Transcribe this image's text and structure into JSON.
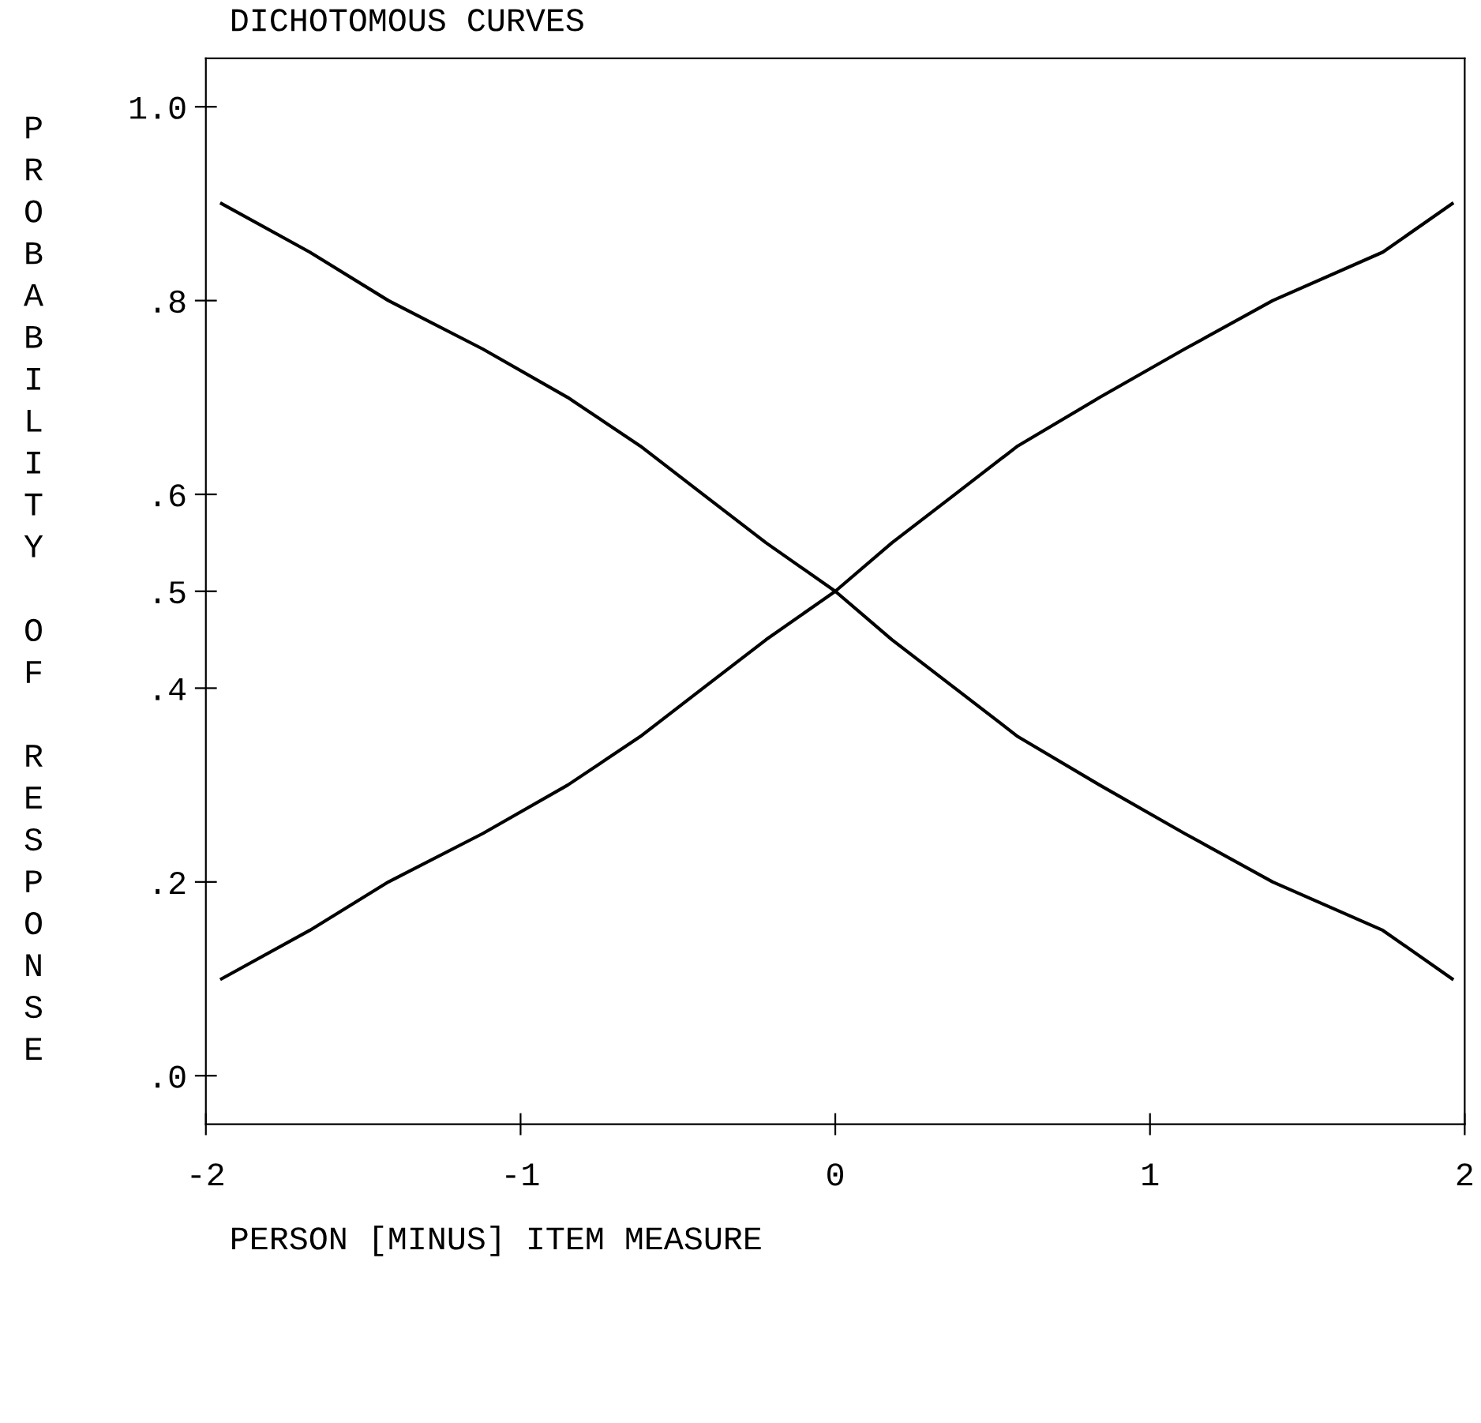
{
  "chart_data": {
    "type": "line",
    "title": "DICHOTOMOUS CURVES",
    "xlabel": "PERSON [MINUS] ITEM MEASURE",
    "ylabel": "PROBABILITY OF RESPONSE",
    "series": [
      {
        "color": "#000000",
        "x": [
          -1.95,
          -1.67,
          -1.42,
          -1.12,
          -0.85,
          -0.62,
          -0.42,
          -0.22,
          0,
          0.18,
          0.38,
          0.58,
          0.84,
          1.11,
          1.39,
          1.74,
          1.96
        ],
        "values": [
          0.9,
          0.85,
          0.8,
          0.75,
          0.7,
          0.65,
          0.6,
          0.55,
          0.5,
          0.45,
          0.4,
          0.35,
          0.3,
          0.25,
          0.2,
          0.15,
          0.1
        ]
      },
      {
        "color": "#000000",
        "x": [
          -1.95,
          -1.67,
          -1.42,
          -1.12,
          -0.85,
          -0.62,
          -0.42,
          -0.22,
          0,
          0.18,
          0.38,
          0.58,
          0.84,
          1.11,
          1.39,
          1.74,
          1.96
        ],
        "values": [
          0.1,
          0.15,
          0.2,
          0.25,
          0.3,
          0.35,
          0.4,
          0.45,
          0.5,
          0.55,
          0.6,
          0.65,
          0.7,
          0.75,
          0.8,
          0.85,
          0.9
        ]
      }
    ],
    "xlim": [
      -2,
      2
    ],
    "xticks": [
      -2,
      -1,
      0,
      1,
      2
    ],
    "ylim": [
      -0.05,
      1.05
    ],
    "yticks": [
      {
        "value": 0,
        "label": ".0"
      },
      {
        "value": 0.2,
        "label": ".2"
      },
      {
        "value": 0.4,
        "label": ".4"
      },
      {
        "value": 0.5,
        "label": ".5"
      },
      {
        "value": 0.6,
        "label": ".6"
      },
      {
        "value": 0.8,
        "label": ".8"
      },
      {
        "value": 1.0,
        "label": "1.0"
      }
    ],
    "grid": false,
    "legend": false
  }
}
